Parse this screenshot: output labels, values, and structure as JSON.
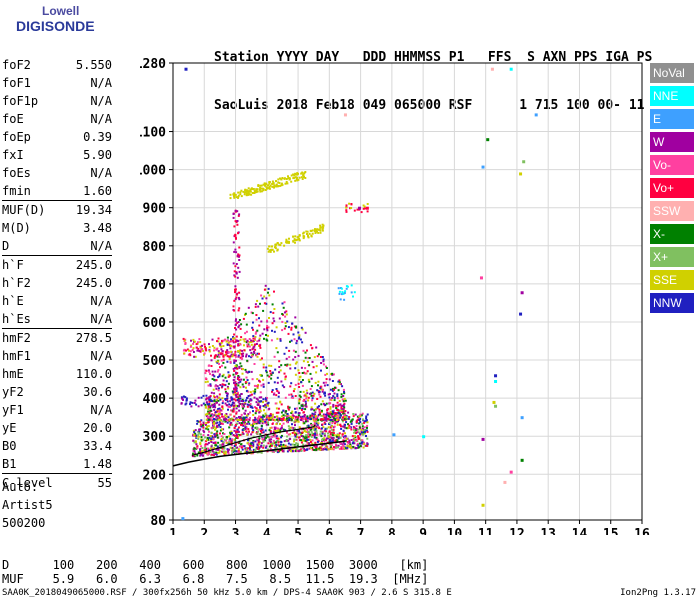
{
  "logo": {
    "line1": "Lowell",
    "line2": "DIGISONDE"
  },
  "header": {
    "labels": [
      "Station",
      "YYYY",
      "DAY",
      "DDD",
      "HHMMSS",
      "P1",
      "FFS",
      "S",
      "AXN",
      "PPS",
      "IGA",
      "PS"
    ],
    "line1": "Station YYYY DAY   DDD HHMMSS P1   FFS  S AXN PPS IGA PS",
    "line2": "SaoLuis 2018 Feb18 049 065000 RSF      1 715 100 00- 11"
  },
  "params": [
    {
      "k": "foF2",
      "v": "5.550"
    },
    {
      "k": "foF1",
      "v": "N/A"
    },
    {
      "k": "foF1p",
      "v": "N/A"
    },
    {
      "k": "foE",
      "v": "N/A"
    },
    {
      "k": "foEp",
      "v": "0.39"
    },
    {
      "k": "fxI",
      "v": "5.90"
    },
    {
      "k": "foEs",
      "v": "N/A"
    },
    {
      "k": "fmin",
      "v": "1.60"
    },
    {
      "k": "MUF(D)",
      "v": "19.34"
    },
    {
      "k": "M(D)",
      "v": "3.48"
    },
    {
      "k": "D",
      "v": "N/A"
    },
    {
      "k": "h`F",
      "v": "245.0"
    },
    {
      "k": "h`F2",
      "v": "245.0"
    },
    {
      "k": "h`E",
      "v": "N/A"
    },
    {
      "k": "h`Es",
      "v": "N/A"
    },
    {
      "k": "hmF2",
      "v": "278.5"
    },
    {
      "k": "hmF1",
      "v": "N/A"
    },
    {
      "k": "hmE",
      "v": "110.0"
    },
    {
      "k": "yF2",
      "v": "30.6"
    },
    {
      "k": "yF1",
      "v": "N/A"
    },
    {
      "k": "yE",
      "v": "20.0"
    },
    {
      "k": "B0",
      "v": "33.4"
    },
    {
      "k": "B1",
      "v": "1.48"
    },
    {
      "k": "C-level",
      "v": "55"
    }
  ],
  "auto": {
    "line1": "Auto:",
    "line2": "Artist5",
    "line3": "500200"
  },
  "legend": [
    {
      "label": "NoVal",
      "color": "#909090"
    },
    {
      "label": "NNE",
      "color": "#00ffff"
    },
    {
      "label": "E",
      "color": "#3ea0ff"
    },
    {
      "label": "W",
      "color": "#a000a0"
    },
    {
      "label": "Vo-",
      "color": "#ff40a0"
    },
    {
      "label": "Vo+",
      "color": "#ff0040"
    },
    {
      "label": "SSW",
      "color": "#ffb0b0"
    },
    {
      "label": "X-",
      "color": "#008000"
    },
    {
      "label": "X+",
      "color": "#80c060"
    },
    {
      "label": "SSE",
      "color": "#d0d000"
    },
    {
      "label": "NNW",
      "color": "#2020c0"
    }
  ],
  "bottom": {
    "d_label": "D",
    "d_values": [
      "100",
      "200",
      "400",
      "600",
      "800",
      "1000",
      "1500",
      "3000",
      "[km]"
    ],
    "muf_label": "MUF",
    "muf_values": [
      "5.9",
      "6.0",
      "6.3",
      "6.8",
      "7.5",
      "8.5",
      "11.5",
      "19.3",
      "[MHz]"
    ]
  },
  "footer": "SAA0K_2018049065000.RSF / 300fx256h 50 kHz 5.0 km / DPS-4 SAA0K 903 / 2.6 S 315.8 E",
  "version": "Ion2Png 1.3.17",
  "chart_data": {
    "type": "scatter",
    "title": "",
    "xlabel": "",
    "ylabel": "",
    "xlim": [
      1,
      16
    ],
    "ylim": [
      80,
      1280
    ],
    "y_scale": "linear",
    "xticks": [
      1,
      2,
      3,
      4,
      5,
      6,
      7,
      8,
      9,
      10,
      11,
      12,
      13,
      14,
      15,
      16
    ],
    "yticks": [
      80,
      200,
      300,
      400,
      500,
      600,
      700,
      800,
      900,
      1000,
      1100,
      1280
    ],
    "grid": true,
    "legend_placement": "right",
    "profile_curve": {
      "x": [
        1.0,
        1.5,
        2.0,
        2.5,
        3.0,
        3.5,
        4.0,
        4.5,
        5.0,
        5.5,
        6.0,
        6.5
      ],
      "y": [
        222,
        232,
        240,
        247,
        252,
        257,
        262,
        267,
        272,
        277,
        282,
        287
      ]
    },
    "trace_curve": {
      "x": [
        1.6,
        2.0,
        2.5,
        3.0,
        3.5,
        4.0,
        4.5,
        5.0,
        5.5,
        5.55
      ],
      "y": [
        250,
        258,
        270,
        283,
        295,
        304,
        312,
        318,
        325,
        330
      ]
    },
    "clusters": [
      {
        "name": "F-trace main",
        "x_range": [
          1.6,
          7.2
        ],
        "y_range": [
          250,
          345
        ],
        "colors": [
          "#ff0040",
          "#a000a0",
          "#d0d000",
          "#008000",
          "#ff40a0",
          "#2020c0",
          "#80c060"
        ]
      },
      {
        "name": "spread F",
        "x_range": [
          2.0,
          6.5
        ],
        "y_range": [
          345,
          720
        ],
        "colors": [
          "#a000a0",
          "#ff0040",
          "#d0d000",
          "#ff40a0",
          "#2020c0",
          "#008000"
        ]
      },
      {
        "name": "upper SSE",
        "x_range": [
          2.8,
          5.2
        ],
        "y_range": [
          930,
          990
        ],
        "colors": [
          "#d0d000"
        ]
      },
      {
        "name": "mid SSE",
        "x_range": [
          4.0,
          5.8
        ],
        "y_range": [
          790,
          850
        ],
        "colors": [
          "#d0d000"
        ]
      },
      {
        "name": "vertical streak",
        "x_range": [
          2.9,
          3.1
        ],
        "y_range": [
          300,
          900
        ],
        "colors": [
          "#a000a0",
          "#ff0040"
        ]
      },
      {
        "name": "NNE patch",
        "x_range": [
          6.2,
          6.8
        ],
        "y_range": [
          660,
          705
        ],
        "colors": [
          "#00ffff",
          "#3ea0ff"
        ]
      },
      {
        "name": "SSE patch 900",
        "x_range": [
          6.5,
          7.2
        ],
        "y_range": [
          890,
          915
        ],
        "colors": [
          "#d0d000",
          "#ff0040"
        ]
      },
      {
        "name": "low echoes",
        "x_range": [
          1.2,
          4.0
        ],
        "y_range": [
          380,
          410
        ],
        "colors": [
          "#a000a0",
          "#2020c0"
        ]
      },
      {
        "name": "mid band",
        "x_range": [
          1.3,
          3.8
        ],
        "y_range": [
          510,
          560
        ],
        "colors": [
          "#ff40a0",
          "#a000a0",
          "#d0d000",
          "#ff0040"
        ]
      }
    ],
    "points": [
      {
        "x": 1.4,
        "y": 1265,
        "c": "#2020c0"
      },
      {
        "x": 11.2,
        "y": 1265,
        "c": "#ffb0b0"
      },
      {
        "x": 11.8,
        "y": 1265,
        "c": "#00ffff"
      },
      {
        "x": 12.6,
        "y": 1145,
        "c": "#3ea0ff"
      },
      {
        "x": 11.05,
        "y": 1080,
        "c": "#008000"
      },
      {
        "x": 10.9,
        "y": 1008,
        "c": "#3ea0ff"
      },
      {
        "x": 12.2,
        "y": 1022,
        "c": "#80c060"
      },
      {
        "x": 12.1,
        "y": 990,
        "c": "#d0d000"
      },
      {
        "x": 10.85,
        "y": 717,
        "c": "#ff40a0"
      },
      {
        "x": 12.15,
        "y": 678,
        "c": "#a000a0"
      },
      {
        "x": 12.1,
        "y": 622,
        "c": "#2020c0"
      },
      {
        "x": 11.3,
        "y": 460,
        "c": "#2020c0"
      },
      {
        "x": 11.3,
        "y": 445,
        "c": "#00ffff"
      },
      {
        "x": 11.25,
        "y": 390,
        "c": "#d0d000"
      },
      {
        "x": 11.3,
        "y": 380,
        "c": "#80c060"
      },
      {
        "x": 12.15,
        "y": 350,
        "c": "#3ea0ff"
      },
      {
        "x": 10.9,
        "y": 293,
        "c": "#a000a0"
      },
      {
        "x": 12.15,
        "y": 238,
        "c": "#008000"
      },
      {
        "x": 11.8,
        "y": 207,
        "c": "#ff40a0"
      },
      {
        "x": 11.6,
        "y": 180,
        "c": "#ffb0b0"
      },
      {
        "x": 10.9,
        "y": 120,
        "c": "#d0d000"
      },
      {
        "x": 6.5,
        "y": 1145,
        "c": "#ffb0b0"
      },
      {
        "x": 1.3,
        "y": 85,
        "c": "#3ea0ff"
      },
      {
        "x": 9.0,
        "y": 300,
        "c": "#00ffff"
      },
      {
        "x": 8.05,
        "y": 305,
        "c": "#3ea0ff"
      },
      {
        "x": 7.2,
        "y": 900,
        "c": "#ff0040"
      },
      {
        "x": 6.95,
        "y": 900,
        "c": "#a000a0"
      }
    ]
  }
}
